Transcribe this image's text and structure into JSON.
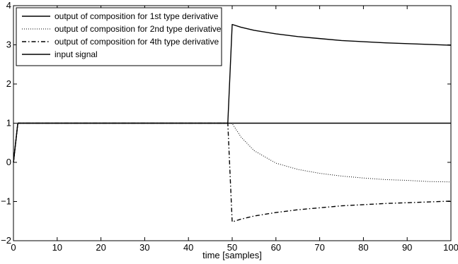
{
  "chart_data": {
    "type": "line",
    "title": "",
    "xlabel": "time [samples]",
    "ylabel": "",
    "xlim": [
      0,
      100
    ],
    "ylim": [
      -2,
      4
    ],
    "xticks": [
      0,
      10,
      20,
      30,
      40,
      50,
      60,
      70,
      80,
      90,
      100
    ],
    "yticks": [
      -2,
      -1,
      0,
      1,
      2,
      3,
      4
    ],
    "xtick_labels": [
      "0",
      "10",
      "20",
      "30",
      "40",
      "50",
      "60",
      "70",
      "80",
      "90",
      "100"
    ],
    "ytick_labels": [
      "−2",
      "−1",
      "0",
      "1",
      "2",
      "3",
      "4"
    ],
    "grid": false,
    "legend_position": "top-left",
    "series": [
      {
        "name": "output of composition for 1st type derivative",
        "style": "solid",
        "color": "#000000",
        "x": [
          0,
          1,
          49,
          50,
          52,
          55,
          60,
          65,
          70,
          75,
          80,
          85,
          90,
          95,
          100
        ],
        "y": [
          0,
          1,
          1,
          3.52,
          3.45,
          3.37,
          3.28,
          3.21,
          3.16,
          3.11,
          3.08,
          3.05,
          3.03,
          3.01,
          2.99
        ]
      },
      {
        "name": "output of composition for 2nd type derivative",
        "style": "dotted",
        "color": "#000000",
        "x": [
          0,
          1,
          49,
          50,
          52,
          55,
          60,
          65,
          70,
          75,
          80,
          85,
          90,
          95,
          100
        ],
        "y": [
          0,
          1,
          1,
          0.99,
          0.65,
          0.3,
          -0.02,
          -0.18,
          -0.28,
          -0.35,
          -0.4,
          -0.44,
          -0.46,
          -0.49,
          -0.5
        ]
      },
      {
        "name": "output of composition for 4th type derivative",
        "style": "dashdot",
        "color": "#000000",
        "x": [
          0,
          1,
          49,
          50,
          52,
          55,
          60,
          65,
          70,
          75,
          80,
          85,
          90,
          95,
          100
        ],
        "y": [
          0,
          1,
          1,
          -1.52,
          -1.45,
          -1.37,
          -1.28,
          -1.21,
          -1.16,
          -1.11,
          -1.08,
          -1.05,
          -1.03,
          -1.01,
          -0.99
        ]
      },
      {
        "name": "input signal",
        "style": "solid",
        "color": "#000000",
        "x": [
          0,
          1,
          100
        ],
        "y": [
          0,
          1,
          1
        ]
      }
    ]
  }
}
